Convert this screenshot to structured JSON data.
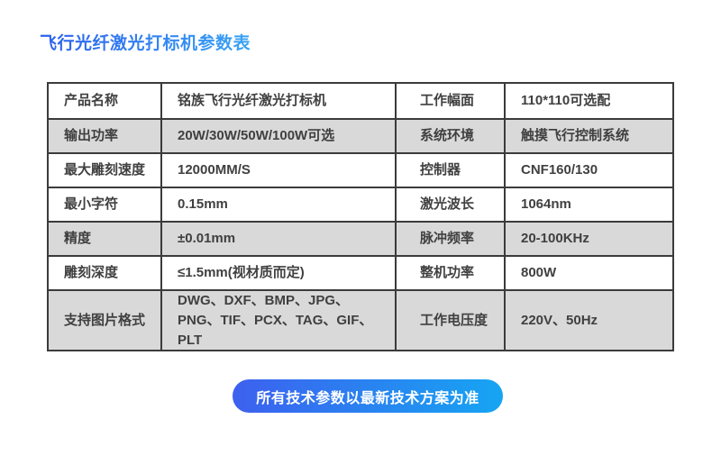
{
  "header": {
    "title": "飞行光纤激光打标机参数表"
  },
  "spec_table": {
    "rows": [
      {
        "label1": "产品名称",
        "value1": "铭族飞行光纤激光打标机",
        "label2": "工作幅面",
        "value2": "110*110可选配",
        "shaded": false
      },
      {
        "label1": "输出功率",
        "value1": "20W/30W/50W/100W可选",
        "label2": "系统环境",
        "value2": "触摸飞行控制系统",
        "shaded": true
      },
      {
        "label1": "最大雕刻速度",
        "value1": "12000MM/S",
        "label2": "控制器",
        "value2": "CNF160/130",
        "shaded": false
      },
      {
        "label1": "最小字符",
        "value1": "0.15mm",
        "label2": "激光波长",
        "value2": "1064nm",
        "shaded": false
      },
      {
        "label1": "精度",
        "value1": "±0.01mm",
        "label2": "脉冲频率",
        "value2": "20-100KHz",
        "shaded": true
      },
      {
        "label1": "雕刻深度",
        "value1": "≤1.5mm(视材质而定)",
        "label2": "整机功率",
        "value2": "800W",
        "shaded": false
      },
      {
        "label1": "支持图片格式",
        "value1": "DWG、DXF、BMP、JPG、PNG、TIF、PCX、TAG、GIF、PLT",
        "label2": "工作电压度",
        "value2": "220V、50Hz",
        "shaded": true
      }
    ]
  },
  "footer": {
    "note": "所有技术参数以最新技术方案为准"
  },
  "colors": {
    "title_gradient_start": "#2c5fec",
    "title_gradient_end": "#38a3f5",
    "pill_gradient_start": "#3d60ef",
    "pill_gradient_end": "#16a5f2",
    "shaded_row": "#d9d9d9",
    "border": "#3b3b3b",
    "text": "#404040"
  }
}
